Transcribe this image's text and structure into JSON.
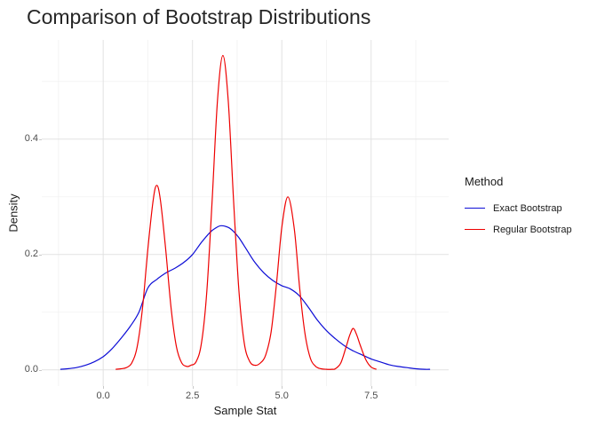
{
  "title": "Comparison of Bootstrap Distributions",
  "axes": {
    "x_label": "Sample Stat",
    "y_label": "Density"
  },
  "legend": {
    "title": "Method",
    "entries": [
      {
        "label": "Exact Bootstrap",
        "color": "#0d0dd6"
      },
      {
        "label": "Regular Bootstrap",
        "color": "#ee0000"
      }
    ]
  },
  "chart_data": {
    "type": "line",
    "title": "Comparison of Bootstrap Distributions",
    "xlabel": "Sample Stat",
    "ylabel": "Density",
    "xlim": [
      -1.72,
      9.67
    ],
    "ylim": [
      -0.028,
      0.572
    ],
    "grid": true,
    "legend_position": "right",
    "x_major_ticks": [
      0,
      2.5,
      5,
      7.5
    ],
    "x_tick_labels": [
      "0.0",
      "2.5",
      "5.0",
      "7.5"
    ],
    "x_minor_ticks": [
      -1.25,
      1.25,
      3.75,
      6.25,
      8.75
    ],
    "y_major_ticks": [
      0,
      0.2,
      0.4
    ],
    "y_tick_labels": [
      "0.0",
      "0.2",
      "0.4"
    ],
    "y_minor_ticks": [
      0.1,
      0.3,
      0.5
    ],
    "grid_major_color": "#e2e2e2",
    "grid_minor_color": "#efefef",
    "series": [
      {
        "name": "Exact Bootstrap",
        "color": "#0d0dd6",
        "points": [
          [
            -1.2,
            0.001
          ],
          [
            -1.0,
            0.002
          ],
          [
            -0.75,
            0.004
          ],
          [
            -0.5,
            0.008
          ],
          [
            -0.25,
            0.014
          ],
          [
            0.0,
            0.023
          ],
          [
            0.25,
            0.037
          ],
          [
            0.5,
            0.055
          ],
          [
            0.75,
            0.075
          ],
          [
            1.0,
            0.1
          ],
          [
            1.25,
            0.142
          ],
          [
            1.5,
            0.157
          ],
          [
            1.75,
            0.168
          ],
          [
            2.0,
            0.176
          ],
          [
            2.25,
            0.186
          ],
          [
            2.5,
            0.2
          ],
          [
            2.75,
            0.221
          ],
          [
            3.0,
            0.239
          ],
          [
            3.15,
            0.246
          ],
          [
            3.3,
            0.25
          ],
          [
            3.5,
            0.247
          ],
          [
            3.65,
            0.24
          ],
          [
            3.8,
            0.229
          ],
          [
            4.0,
            0.21
          ],
          [
            4.25,
            0.186
          ],
          [
            4.5,
            0.168
          ],
          [
            4.75,
            0.155
          ],
          [
            5.0,
            0.146
          ],
          [
            5.25,
            0.14
          ],
          [
            5.5,
            0.128
          ],
          [
            5.75,
            0.108
          ],
          [
            6.0,
            0.086
          ],
          [
            6.25,
            0.068
          ],
          [
            6.5,
            0.054
          ],
          [
            6.75,
            0.042
          ],
          [
            7.0,
            0.033
          ],
          [
            7.25,
            0.026
          ],
          [
            7.5,
            0.019
          ],
          [
            7.75,
            0.014
          ],
          [
            8.0,
            0.009
          ],
          [
            8.25,
            0.006
          ],
          [
            8.5,
            0.004
          ],
          [
            8.75,
            0.002
          ],
          [
            9.0,
            0.001
          ],
          [
            9.15,
            0.001
          ]
        ]
      },
      {
        "name": "Regular Bootstrap",
        "color": "#ee0000",
        "points": [
          [
            0.35,
            0.001
          ],
          [
            0.5,
            0.002
          ],
          [
            0.65,
            0.004
          ],
          [
            0.8,
            0.012
          ],
          [
            0.95,
            0.04
          ],
          [
            1.1,
            0.107
          ],
          [
            1.25,
            0.209
          ],
          [
            1.4,
            0.295
          ],
          [
            1.5,
            0.32
          ],
          [
            1.6,
            0.295
          ],
          [
            1.75,
            0.209
          ],
          [
            1.9,
            0.107
          ],
          [
            2.05,
            0.04
          ],
          [
            2.2,
            0.012
          ],
          [
            2.35,
            0.006
          ],
          [
            2.45,
            0.008
          ],
          [
            2.6,
            0.014
          ],
          [
            2.75,
            0.046
          ],
          [
            2.9,
            0.136
          ],
          [
            3.05,
            0.294
          ],
          [
            3.2,
            0.467
          ],
          [
            3.35,
            0.545
          ],
          [
            3.5,
            0.467
          ],
          [
            3.65,
            0.294
          ],
          [
            3.8,
            0.136
          ],
          [
            3.95,
            0.046
          ],
          [
            4.1,
            0.015
          ],
          [
            4.25,
            0.008
          ],
          [
            4.4,
            0.012
          ],
          [
            4.55,
            0.026
          ],
          [
            4.7,
            0.066
          ],
          [
            4.85,
            0.149
          ],
          [
            5.0,
            0.247
          ],
          [
            5.17,
            0.3
          ],
          [
            5.35,
            0.244
          ],
          [
            5.5,
            0.142
          ],
          [
            5.65,
            0.062
          ],
          [
            5.8,
            0.02
          ],
          [
            5.95,
            0.006
          ],
          [
            6.1,
            0.002
          ],
          [
            6.25,
            0.001
          ],
          [
            6.4,
            0.001
          ],
          [
            6.5,
            0.002
          ],
          [
            6.65,
            0.012
          ],
          [
            6.8,
            0.04
          ],
          [
            6.9,
            0.06
          ],
          [
            7.0,
            0.072
          ],
          [
            7.1,
            0.06
          ],
          [
            7.2,
            0.042
          ],
          [
            7.35,
            0.018
          ],
          [
            7.5,
            0.005
          ],
          [
            7.65,
            0.001
          ]
        ]
      }
    ]
  }
}
